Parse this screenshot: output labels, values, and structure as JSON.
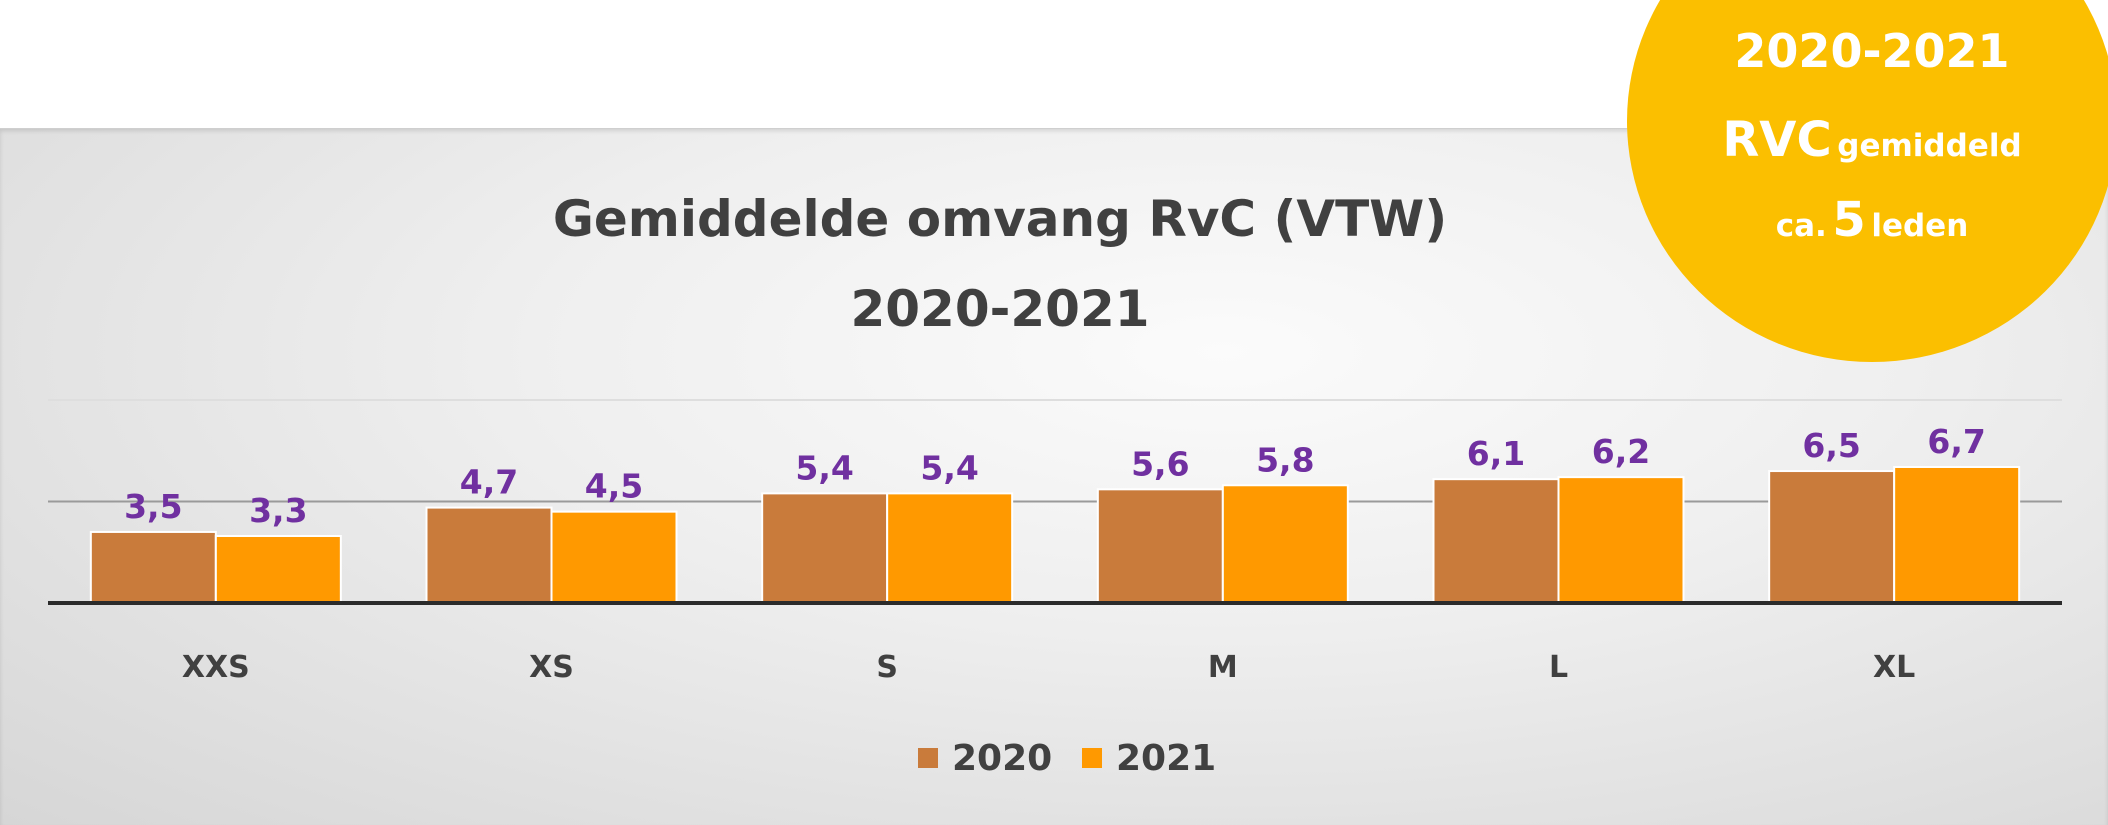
{
  "badge": {
    "line1": "2020-2021",
    "line2_strong": "RVC",
    "line2_rest": "gemiddeld",
    "line3_pre": "ca.",
    "line3_number": "5",
    "line3_post": "leden",
    "color": "#fbbf00"
  },
  "chart_data": {
    "type": "bar",
    "title": [
      "Gemiddelde omvang RvC (VTW)",
      "2020-2021"
    ],
    "categories": [
      "XXS",
      "XS",
      "S",
      "M",
      "L",
      "XL"
    ],
    "series": [
      {
        "name": "2020",
        "values": [
          3.5,
          4.7,
          5.4,
          5.6,
          6.1,
          6.5
        ],
        "labels": [
          "3,5",
          "4,7",
          "5,4",
          "5,6",
          "6,1",
          "6,5"
        ],
        "color": "#c97b3b"
      },
      {
        "name": "2021",
        "values": [
          3.3,
          4.5,
          5.4,
          5.8,
          6.2,
          6.7
        ],
        "labels": [
          "3,3",
          "4,5",
          "5,4",
          "5,8",
          "6,2",
          "6,7"
        ],
        "color": "#ff9900"
      }
    ],
    "ylim": [
      0,
      10
    ],
    "grid": true,
    "legend": "bottom",
    "xlabel": "",
    "ylabel": ""
  }
}
